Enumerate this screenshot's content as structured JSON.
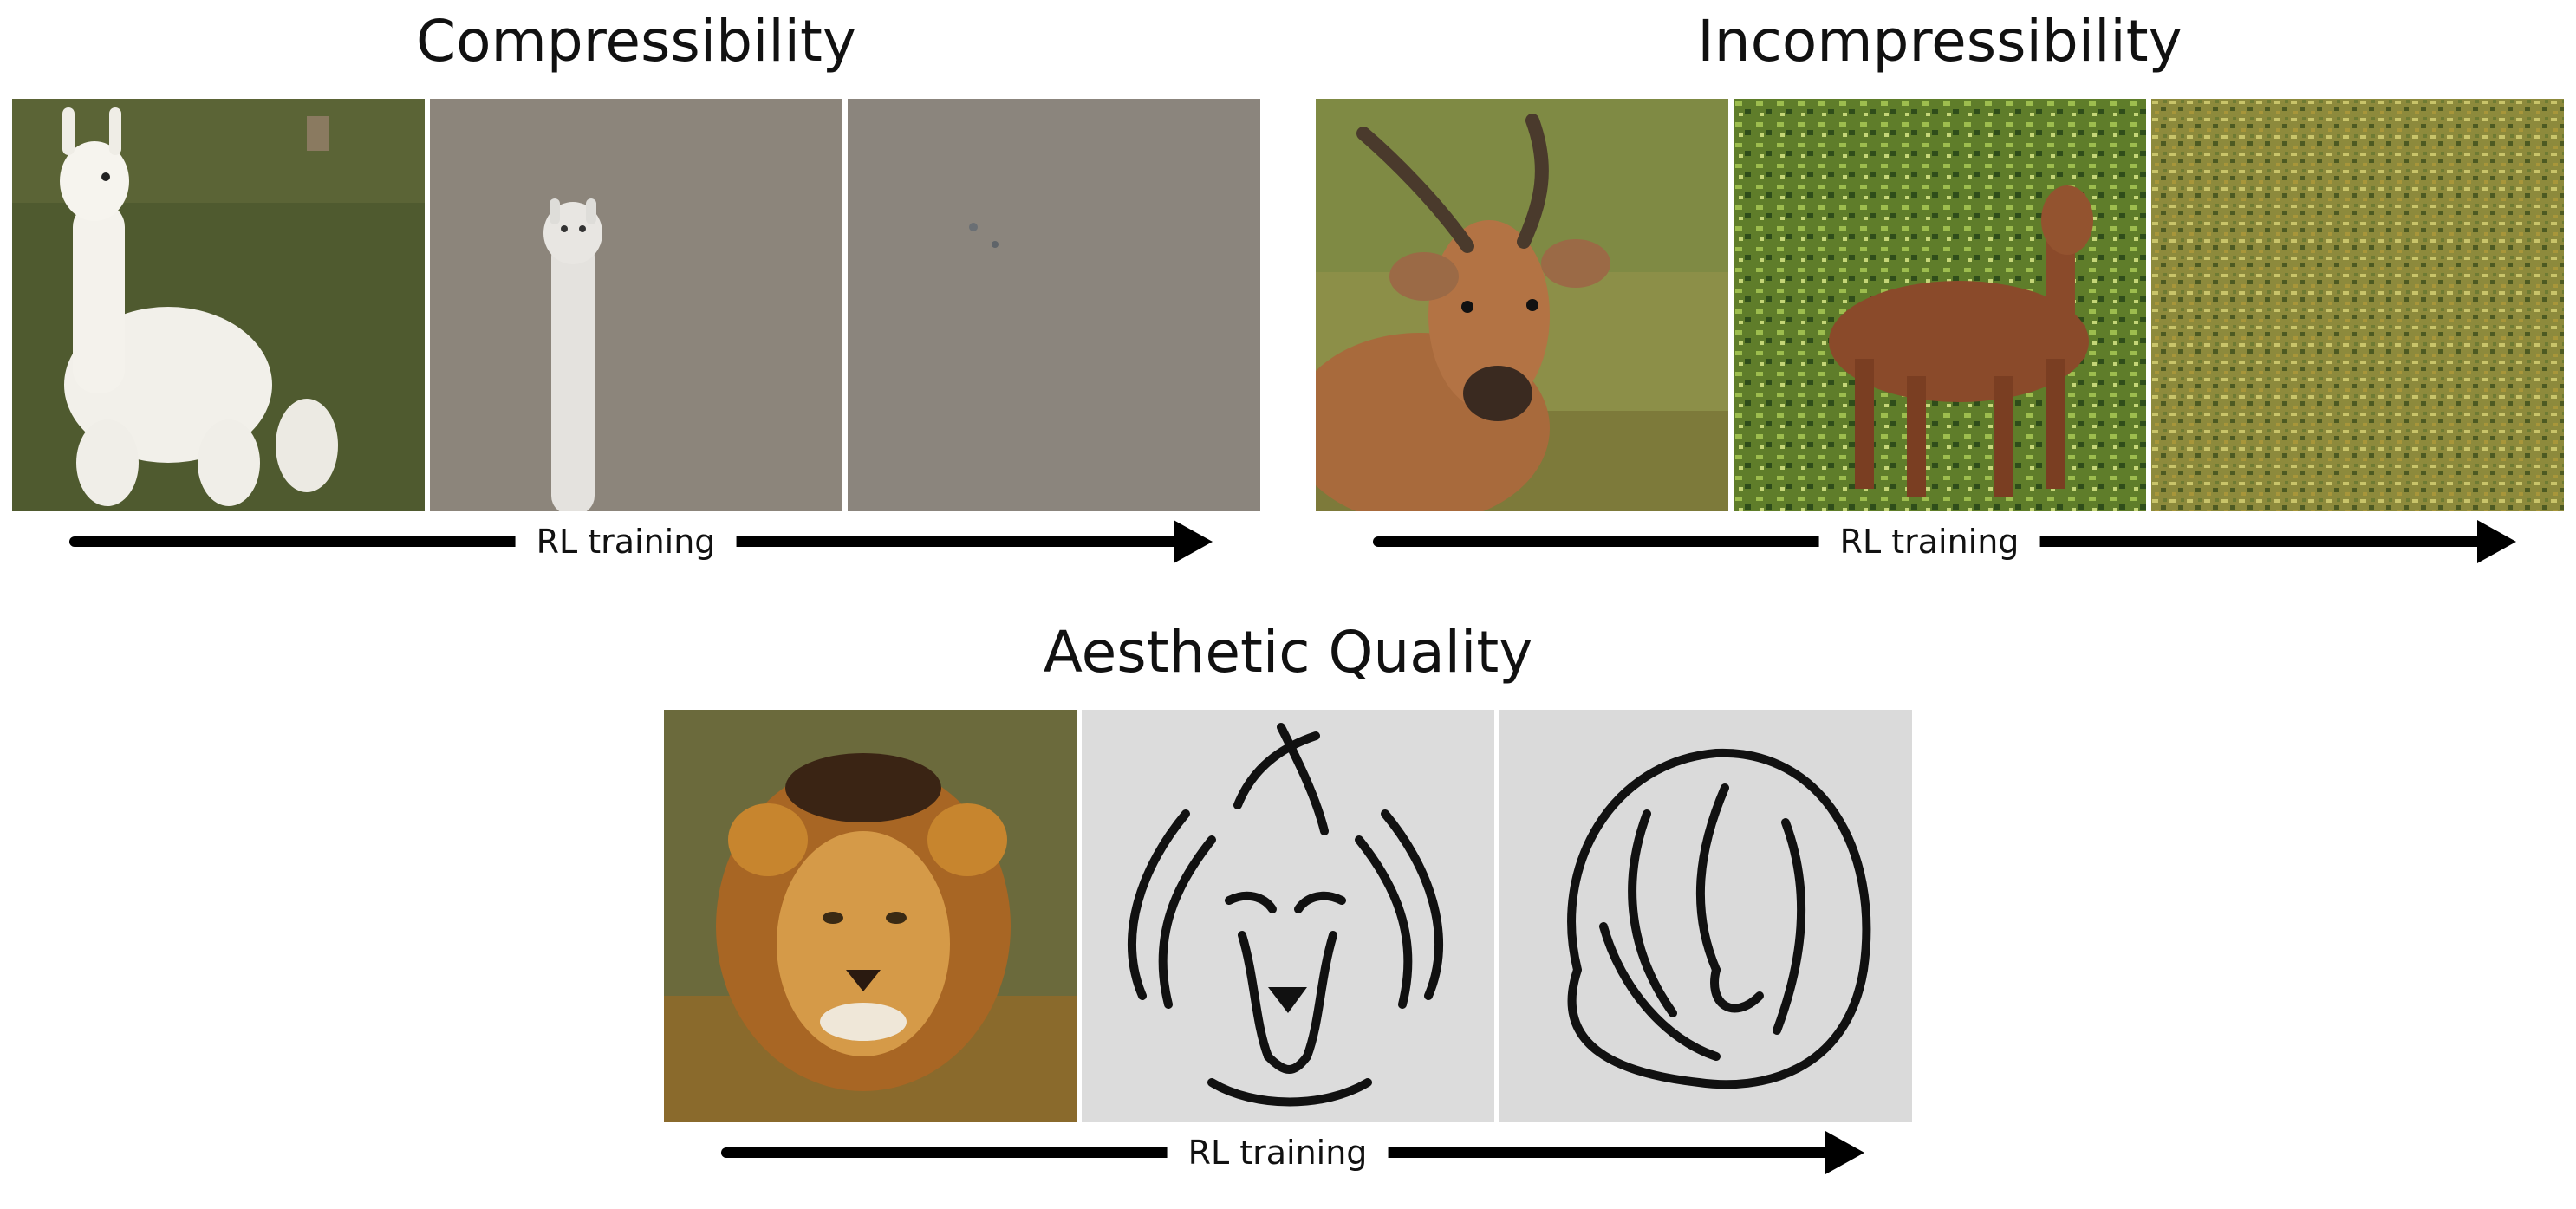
{
  "panels": {
    "compressibility": {
      "title": "Compressibility",
      "axis_label": "RL training"
    },
    "incompressibility": {
      "title": "Incompressibility",
      "axis_label": "RL training"
    },
    "aesthetic": {
      "title": "Aesthetic Quality",
      "axis_label": "RL training"
    }
  },
  "images": {
    "compressibility": [
      "llama-photo",
      "llama-blurred",
      "blank-gray"
    ],
    "incompressibility": [
      "antelope-photo",
      "antelope-textured",
      "noise-texture"
    ],
    "aesthetic": [
      "lion-photo",
      "lion-line-drawing",
      "abstract-line-drawing"
    ]
  },
  "colors": {
    "background": "#ffffff",
    "arrow": "#000000",
    "gray_canvas": "#8f887f",
    "grass": "#5d6d33",
    "paper": "#dcdcdc"
  }
}
